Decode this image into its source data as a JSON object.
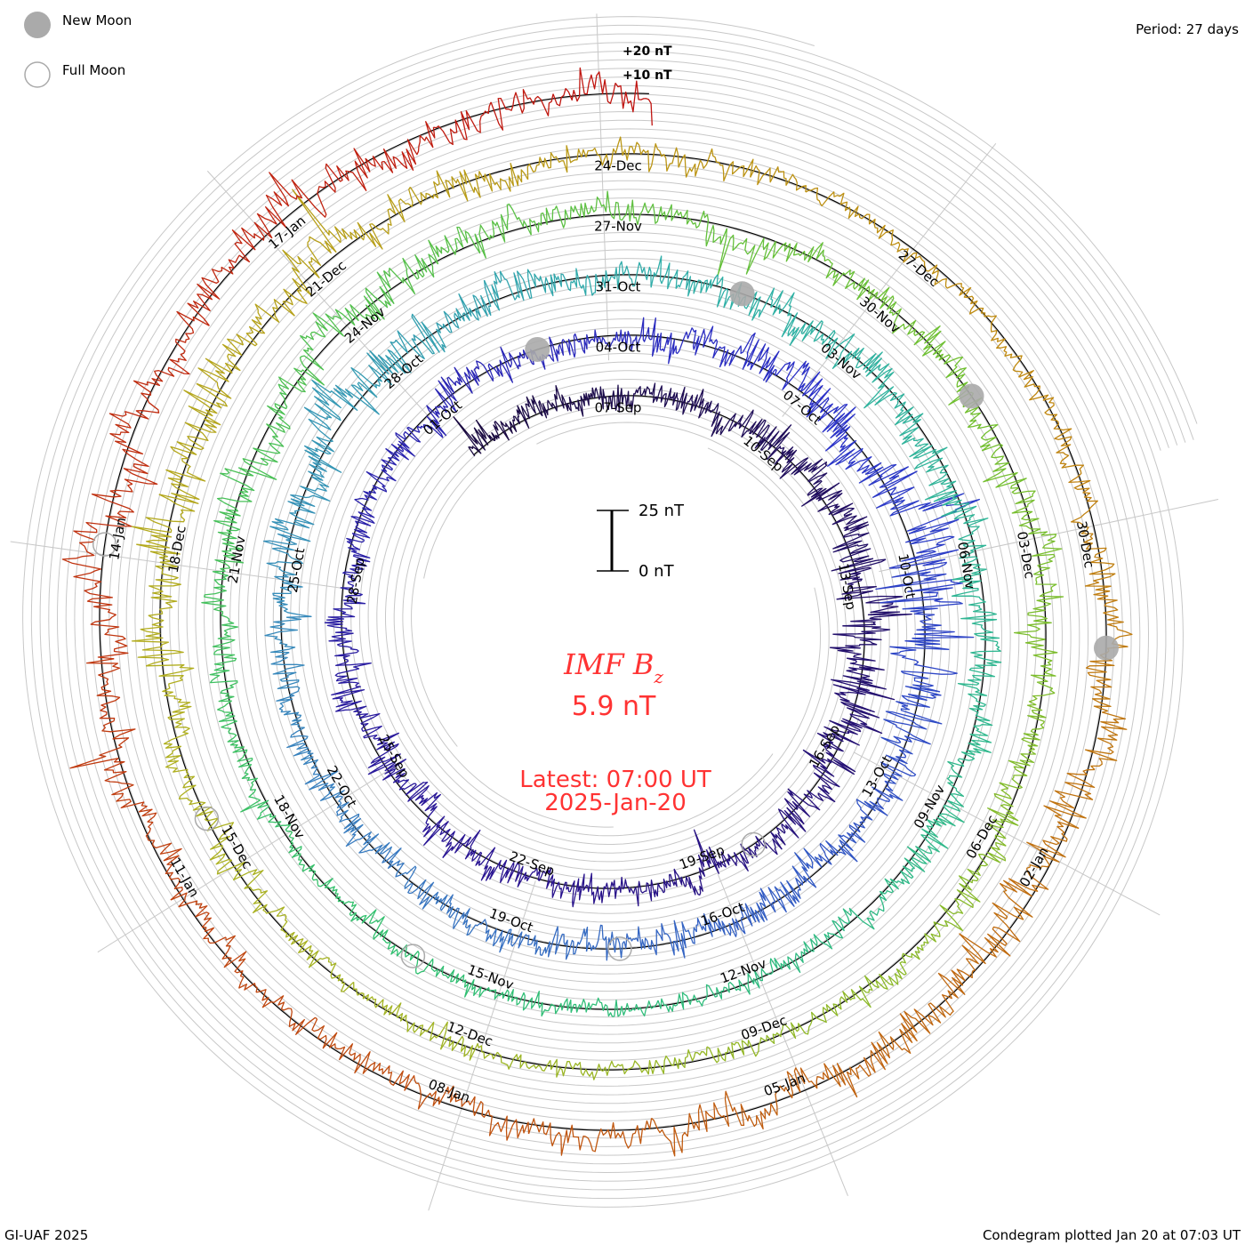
{
  "legend": {
    "new_moon": "New Moon",
    "full_moon": "Full Moon",
    "new_moon_color": "#aaaaaa",
    "full_moon_color": "#aaaaaa"
  },
  "period_label": "Period: 27 days",
  "footer_left": "GI-UAF 2025",
  "footer_right": "Condegram plotted Jan 20 at 07:03 UT",
  "center": {
    "title_main": "IMF B",
    "title_sub": "z",
    "value": "5.9 nT",
    "latest": "Latest: 07:00 UT",
    "date": "2025-Jan-20"
  },
  "scale_bar": {
    "top_label": "25 nT",
    "bottom_label": "0 nT",
    "span_nT": 25
  },
  "offset_labels": {
    "plus20": "+20 nT",
    "plus10": "+10 nT"
  },
  "chart_data": {
    "type": "line",
    "title": "IMF Bz",
    "subtype": "condegram-spiral",
    "period_days": 27,
    "units": "nT",
    "spiral_epoch": "2024-09-07T00:00Z",
    "data_start": "2024-09-04T00:00Z",
    "data_end": "2025-01-20T07:00Z",
    "latest_value_nT": 5.9,
    "activity_step_days": 3,
    "activity_amplitude_nT_est": [
      4,
      4,
      5,
      9,
      7,
      4,
      4,
      6,
      4,
      5,
      4,
      6,
      12,
      5,
      5,
      4,
      4,
      5,
      8,
      4,
      6,
      5,
      5,
      3,
      3,
      3,
      5,
      6,
      4,
      4,
      5,
      4,
      3,
      3,
      4,
      7,
      5,
      4,
      2,
      4,
      8,
      5,
      4,
      4,
      6,
      6,
      5
    ],
    "date_labels": [
      "07-Sep",
      "10-Sep",
      "13-Sep",
      "16-Sep",
      "19-Sep",
      "22-Sep",
      "25-Sep",
      "28-Sep",
      "01-Oct",
      "04-Oct",
      "07-Oct",
      "10-Oct",
      "13-Oct",
      "16-Oct",
      "19-Oct",
      "22-Oct",
      "25-Oct",
      "28-Oct",
      "31-Oct",
      "03-Nov",
      "06-Nov",
      "09-Nov",
      "12-Nov",
      "15-Nov",
      "18-Nov",
      "21-Nov",
      "24-Nov",
      "27-Nov",
      "30-Nov",
      "03-Dec",
      "06-Dec",
      "09-Dec",
      "12-Dec",
      "15-Dec",
      "18-Dec",
      "21-Dec",
      "24-Dec",
      "27-Dec",
      "30-Dec",
      "02-Jan",
      "05-Jan",
      "08-Jan",
      "11-Jan",
      "14-Jan",
      "17-Jan"
    ],
    "new_moons": [
      "2024-10-02T18:49Z",
      "2024-11-01T12:47Z",
      "2024-12-01T06:21Z",
      "2024-12-30T22:27Z"
    ],
    "full_moons": [
      "2024-09-18T02:34Z",
      "2024-10-17T11:26Z",
      "2024-11-15T21:28Z",
      "2024-12-15T09:02Z",
      "2025-01-13T22:27Z"
    ],
    "color_stops": [
      {
        "day": -3,
        "color": "#1a0a40"
      },
      {
        "day": 15,
        "color": "#2a1490"
      },
      {
        "day": 30,
        "color": "#2a30c8"
      },
      {
        "day": 45,
        "color": "#3a80c0"
      },
      {
        "day": 55,
        "color": "#30b0a8"
      },
      {
        "day": 70,
        "color": "#30c070"
      },
      {
        "day": 85,
        "color": "#70c030"
      },
      {
        "day": 100,
        "color": "#b0b020"
      },
      {
        "day": 112,
        "color": "#c08a10"
      },
      {
        "day": 122,
        "color": "#c05510"
      },
      {
        "day": 136,
        "color": "#c01010"
      }
    ]
  }
}
